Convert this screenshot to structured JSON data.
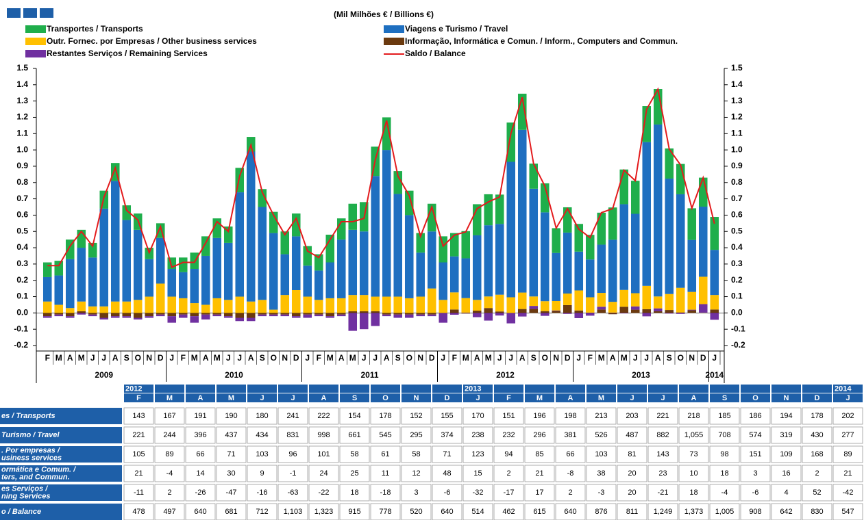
{
  "chart_data": {
    "type": "bar",
    "stacked": true,
    "title": "(Mil Milhões € / Billions €)",
    "categories": [
      "F",
      "M",
      "A",
      "M",
      "J",
      "J",
      "A",
      "S",
      "O",
      "N",
      "D",
      "J",
      "F",
      "M",
      "A",
      "M",
      "J",
      "J",
      "A",
      "S",
      "O",
      "N",
      "D",
      "J",
      "F",
      "M",
      "A",
      "M",
      "J",
      "J",
      "A",
      "S",
      "O",
      "N",
      "D",
      "J",
      "F",
      "M",
      "A",
      "M",
      "J",
      "J",
      "A",
      "S",
      "O",
      "N",
      "D",
      "J",
      "F",
      "M",
      "A",
      "M",
      "J",
      "J",
      "A",
      "S",
      "O",
      "N",
      "D",
      "J"
    ],
    "years": [
      "2009",
      "2010",
      "2011",
      "2012",
      "2013",
      "2014"
    ],
    "ylim": [
      -0.2,
      1.5
    ],
    "yticks": [
      1.5,
      1.4,
      1.3,
      1.2,
      1.1,
      {
        "value": 1.0,
        "label": "1.0"
      },
      0.9,
      0.8,
      0.7,
      0.6,
      0.5,
      0.4,
      0.3,
      0.2,
      0.1,
      {
        "value": 0,
        "label": "0.0"
      },
      -0.1,
      -0.2
    ],
    "series": [
      {
        "name": "Transportes / Transports",
        "color": "#1fae4b",
        "values": [
          0.09,
          0.09,
          0.12,
          0.11,
          0.09,
          0.11,
          0.11,
          0.09,
          0.1,
          0.07,
          0.09,
          0.07,
          0.09,
          0.1,
          0.12,
          0.12,
          0.1,
          0.15,
          0.09,
          0.11,
          0.13,
          0.14,
          0.14,
          0.12,
          0.1,
          0.17,
          0.13,
          0.16,
          0.18,
          0.18,
          0.2,
          0.14,
          0.15,
          0.12,
          0.17,
          0.16,
          0.143,
          0.167,
          0.191,
          0.19,
          0.18,
          0.241,
          0.222,
          0.154,
          0.178,
          0.152,
          0.155,
          0.17,
          0.151,
          0.196,
          0.198,
          0.213,
          0.203,
          0.221,
          0.218,
          0.185,
          0.186,
          0.194,
          0.178,
          0.202
        ]
      },
      {
        "name": "Viagens e Turismo / Travel",
        "color": "#1e6fc0",
        "values": [
          0.15,
          0.18,
          0.3,
          0.33,
          0.3,
          0.6,
          0.74,
          0.5,
          0.43,
          0.23,
          0.28,
          0.17,
          0.16,
          0.21,
          0.3,
          0.37,
          0.35,
          0.64,
          0.92,
          0.57,
          0.47,
          0.25,
          0.33,
          0.19,
          0.18,
          0.22,
          0.36,
          0.4,
          0.39,
          0.74,
          0.9,
          0.63,
          0.51,
          0.27,
          0.35,
          0.23,
          0.221,
          0.244,
          0.396,
          0.437,
          0.434,
          0.831,
          0.998,
          0.661,
          0.545,
          0.295,
          0.374,
          0.238,
          0.232,
          0.296,
          0.381,
          0.526,
          0.487,
          0.882,
          1.055,
          0.708,
          0.574,
          0.319,
          0.43,
          0.277
        ]
      },
      {
        "name": "Outr. Fornec. por Empresas  / Other business services",
        "color": "#ffc000",
        "values": [
          0.07,
          0.05,
          0.03,
          0.06,
          0.04,
          0.04,
          0.07,
          0.07,
          0.08,
          0.1,
          0.18,
          0.1,
          0.09,
          0.06,
          0.05,
          0.09,
          0.08,
          0.1,
          0.07,
          0.08,
          0.02,
          0.11,
          0.14,
          0.1,
          0.08,
          0.09,
          0.09,
          0.1,
          0.1,
          0.09,
          0.1,
          0.1,
          0.09,
          0.1,
          0.15,
          0.08,
          0.105,
          0.089,
          0.066,
          0.071,
          0.103,
          0.096,
          0.101,
          0.058,
          0.061,
          0.058,
          0.071,
          0.123,
          0.094,
          0.085,
          0.066,
          0.103,
          0.081,
          0.143,
          0.073,
          0.098,
          0.151,
          0.109,
          0.168,
          0.089
        ]
      },
      {
        "name": "Informação, Informática e Comun. / Inform., Computers and Commun.",
        "color": "#6b3a0f",
        "values": [
          -0.02,
          -0.01,
          -0.02,
          0.01,
          -0.01,
          -0.03,
          -0.02,
          -0.02,
          -0.03,
          -0.02,
          -0.01,
          -0.02,
          -0.01,
          -0.02,
          -0.01,
          -0.01,
          -0.02,
          -0.03,
          -0.03,
          -0.01,
          -0.01,
          -0.01,
          -0.02,
          -0.01,
          -0.01,
          -0.02,
          -0.01,
          0.01,
          0.01,
          0.01,
          -0.01,
          -0.01,
          -0.01,
          -0.01,
          -0.01,
          0.0,
          0.021,
          -0.004,
          0.014,
          0.03,
          0.009,
          -0.001,
          0.024,
          0.025,
          0.011,
          0.012,
          0.048,
          0.015,
          0.002,
          0.021,
          -0.008,
          0.038,
          0.02,
          0.023,
          0.01,
          0.018,
          0.003,
          0.016,
          0.002,
          0.021
        ]
      },
      {
        "name": "Restantes Serviços / Remaining Services",
        "color": "#7030a0",
        "values": [
          -0.01,
          -0.01,
          -0.01,
          -0.01,
          -0.01,
          -0.01,
          -0.01,
          -0.01,
          -0.01,
          -0.01,
          -0.01,
          -0.04,
          -0.02,
          -0.04,
          -0.03,
          -0.01,
          -0.01,
          -0.02,
          -0.02,
          -0.01,
          -0.01,
          -0.01,
          -0.01,
          -0.02,
          -0.01,
          -0.01,
          -0.01,
          -0.11,
          -0.1,
          -0.08,
          -0.01,
          -0.02,
          -0.02,
          -0.01,
          -0.01,
          -0.06,
          -0.011,
          0.002,
          -0.026,
          -0.047,
          -0.016,
          -0.063,
          -0.022,
          0.018,
          -0.018,
          0.003,
          -0.006,
          -0.032,
          -0.017,
          0.017,
          0.002,
          -0.003,
          0.02,
          -0.021,
          0.018,
          -0.004,
          -0.006,
          0.004,
          0.052,
          -0.042
        ]
      },
      {
        "name": "Saldo / Balance",
        "color": "#e31a1c",
        "type": "line",
        "values": [
          0.29,
          0.29,
          0.41,
          0.5,
          0.41,
          0.71,
          0.89,
          0.63,
          0.57,
          0.37,
          0.53,
          0.28,
          0.31,
          0.31,
          0.43,
          0.56,
          0.5,
          0.84,
          1.03,
          0.74,
          0.6,
          0.48,
          0.58,
          0.38,
          0.34,
          0.45,
          0.56,
          0.56,
          0.58,
          0.94,
          1.18,
          0.84,
          0.72,
          0.47,
          0.65,
          0.41,
          0.478,
          0.497,
          0.64,
          0.681,
          0.712,
          1.103,
          1.323,
          0.915,
          0.778,
          0.52,
          0.64,
          0.514,
          0.462,
          0.615,
          0.64,
          0.876,
          0.811,
          1.249,
          1.373,
          1.005,
          0.908,
          0.642,
          0.83,
          0.547
        ]
      }
    ]
  },
  "table": {
    "years": [
      "2012",
      null,
      null,
      null,
      null,
      null,
      null,
      null,
      null,
      null,
      null,
      "2013",
      null,
      null,
      null,
      null,
      null,
      null,
      null,
      null,
      null,
      null,
      null,
      "2014"
    ],
    "months": [
      "F",
      "M",
      "A",
      "M",
      "J",
      "J",
      "A",
      "S",
      "O",
      "N",
      "D",
      "J",
      "F",
      "M",
      "A",
      "M",
      "J",
      "J",
      "A",
      "S",
      "O",
      "N",
      "D",
      "J"
    ],
    "rows": [
      {
        "label": [
          "es / Transports"
        ],
        "cells": [
          "143",
          "167",
          "191",
          "190",
          "180",
          "241",
          "222",
          "154",
          "178",
          "152",
          "155",
          "170",
          "151",
          "196",
          "198",
          "213",
          "203",
          "221",
          "218",
          "185",
          "186",
          "194",
          "178",
          "202"
        ]
      },
      {
        "label": [
          "Turismo / Travel"
        ],
        "cells": [
          "221",
          "244",
          "396",
          "437",
          "434",
          "831",
          "998",
          "661",
          "545",
          "295",
          "374",
          "238",
          "232",
          "296",
          "381",
          "526",
          "487",
          "882",
          "1,055",
          "708",
          "574",
          "319",
          "430",
          "277"
        ]
      },
      {
        "label": [
          ". Por empresas /",
          "usiness services"
        ],
        "cells": [
          "105",
          "89",
          "66",
          "71",
          "103",
          "96",
          "101",
          "58",
          "61",
          "58",
          "71",
          "123",
          "94",
          "85",
          "66",
          "103",
          "81",
          "143",
          "73",
          "98",
          "151",
          "109",
          "168",
          "89"
        ]
      },
      {
        "label": [
          "ormática e Comum. /",
          "ters, and Commun."
        ],
        "cells": [
          "21",
          "-4",
          "14",
          "30",
          "9",
          "-1",
          "24",
          "25",
          "11",
          "12",
          "48",
          "15",
          "2",
          "21",
          "-8",
          "38",
          "20",
          "23",
          "10",
          "18",
          "3",
          "16",
          "2",
          "21"
        ]
      },
      {
        "label": [
          "es Serviços /",
          "ning Services"
        ],
        "cells": [
          "-11",
          "2",
          "-26",
          "-47",
          "-16",
          "-63",
          "-22",
          "18",
          "-18",
          "3",
          "-6",
          "-32",
          "-17",
          "17",
          "2",
          "-3",
          "20",
          "-21",
          "18",
          "-4",
          "-6",
          "4",
          "52",
          "-42"
        ]
      },
      {
        "label": [
          "o / Balance"
        ],
        "cells": [
          "478",
          "497",
          "640",
          "681",
          "712",
          "1,103",
          "1,323",
          "915",
          "778",
          "520",
          "640",
          "514",
          "462",
          "615",
          "640",
          "876",
          "811",
          "1,249",
          "1,373",
          "1,005",
          "908",
          "642",
          "830",
          "547"
        ]
      }
    ]
  }
}
